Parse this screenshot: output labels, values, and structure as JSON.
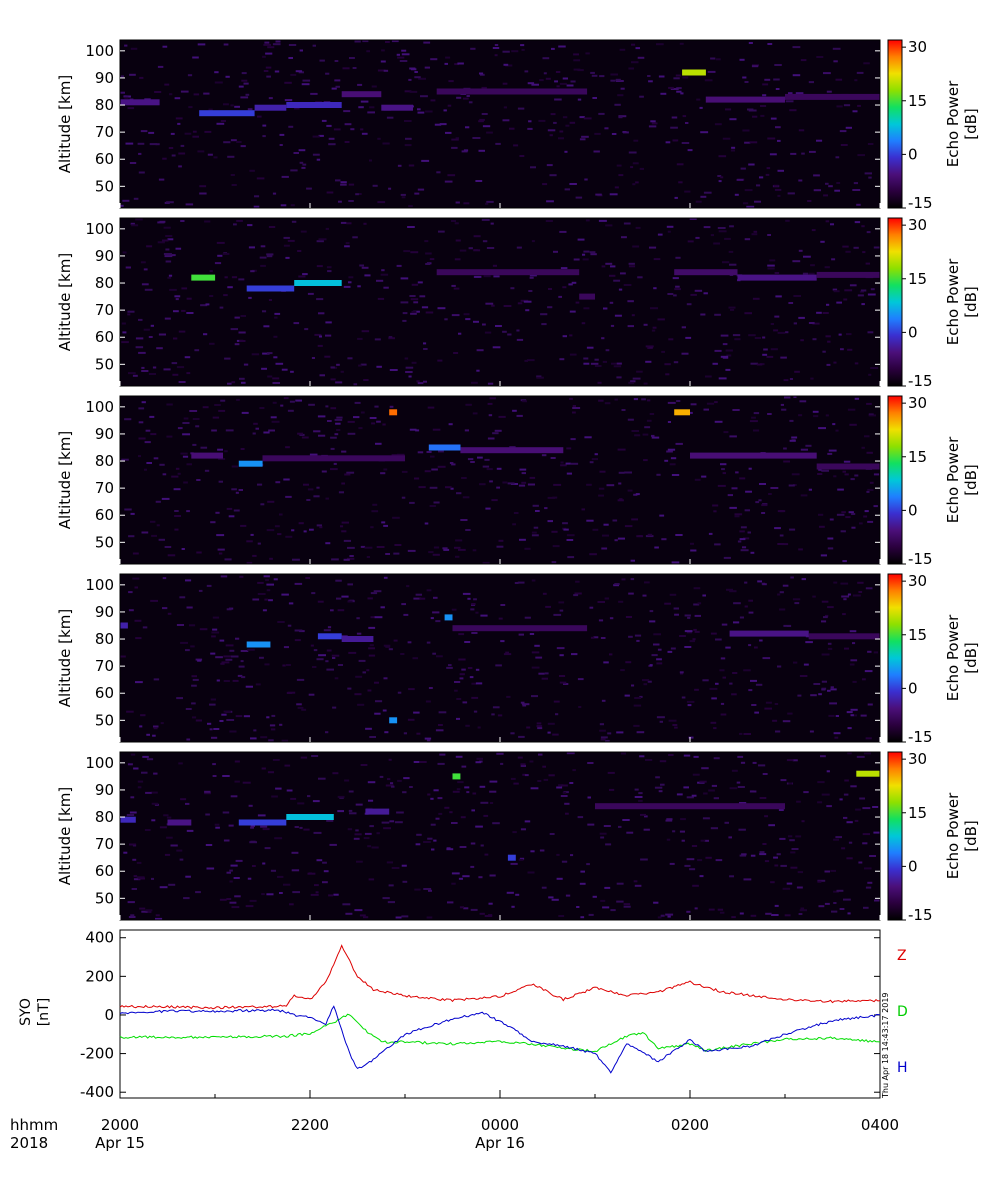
{
  "panels": [
    {
      "ylabel": "Altitude [km]",
      "yticks": [
        "100",
        "90",
        "80",
        "70",
        "60",
        "50"
      ],
      "cbar_label": "Echo Power [dB]",
      "cbar_ticks": [
        "30",
        "15",
        "0",
        "-15"
      ]
    },
    {
      "ylabel": "Altitude [km]",
      "yticks": [
        "100",
        "90",
        "80",
        "70",
        "60",
        "50"
      ],
      "cbar_label": "Echo Power [dB]",
      "cbar_ticks": [
        "30",
        "15",
        "0",
        "-15"
      ]
    },
    {
      "ylabel": "Altitude [km]",
      "yticks": [
        "100",
        "90",
        "80",
        "70",
        "60",
        "50"
      ],
      "cbar_label": "Echo Power [dB]",
      "cbar_ticks": [
        "30",
        "15",
        "0",
        "-15"
      ]
    },
    {
      "ylabel": "Altitude [km]",
      "yticks": [
        "100",
        "90",
        "80",
        "70",
        "60",
        "50"
      ],
      "cbar_label": "Echo Power [dB]",
      "cbar_ticks": [
        "30",
        "15",
        "0",
        "-15"
      ]
    },
    {
      "ylabel": "Altitude [km]",
      "yticks": [
        "100",
        "90",
        "80",
        "70",
        "60",
        "50"
      ],
      "cbar_label": "Echo Power [dB]",
      "cbar_ticks": [
        "30",
        "15",
        "0",
        "-15"
      ]
    }
  ],
  "mag": {
    "ylabel_line1": "SYO",
    "ylabel_line2": "[nT]",
    "yticks": [
      "400",
      "200",
      "0",
      "-200",
      "-400"
    ],
    "series_labels": [
      "Z",
      "D",
      "H"
    ],
    "timestamp": "Thu Apr 18 14:43:17 2019"
  },
  "xaxis": {
    "row_label_1": "hhmm",
    "row_label_2": "2018",
    "ticks": [
      "2000",
      "2200",
      "0000",
      "0200",
      "0400"
    ],
    "dates": [
      "Apr 15",
      "Apr 16"
    ]
  },
  "colors": {
    "Z": "#dd0000",
    "D": "#00dd00",
    "H": "#0000cc",
    "colormap": [
      "#000000",
      "#2a003d",
      "#4b0f7a",
      "#3a2fd0",
      "#1f7fff",
      "#00c8d8",
      "#12e060",
      "#8ee000",
      "#f0e000",
      "#ff8000",
      "#ff0000"
    ]
  },
  "chart_data": [
    {
      "type": "heatmap",
      "panel": 1,
      "x_range": [
        "2018-04-15 20:00",
        "2018-04-16 04:00"
      ],
      "ylabel": "Altitude [km]",
      "ylim": [
        42,
        104
      ],
      "colorbar": {
        "label": "Echo Power [dB]",
        "range": [
          -15,
          32
        ]
      },
      "echoes": [
        {
          "t": [
            "20:00",
            "20:25"
          ],
          "alt": 81,
          "db": -5
        },
        {
          "t": [
            "20:50",
            "21:25"
          ],
          "alt": 77,
          "db": 0
        },
        {
          "t": [
            "21:25",
            "21:45"
          ],
          "alt": 79,
          "db": -3
        },
        {
          "t": [
            "21:45",
            "22:20"
          ],
          "alt": 80,
          "db": -2
        },
        {
          "t": [
            "22:20",
            "22:45"
          ],
          "alt": 84,
          "db": -6
        },
        {
          "t": [
            "22:45",
            "23:05"
          ],
          "alt": 79,
          "db": -5
        },
        {
          "t": [
            "23:20",
            "00:55"
          ],
          "alt": 85,
          "db": -8
        },
        {
          "t": [
            "01:55",
            "02:10"
          ],
          "alt": 92,
          "db": 20
        },
        {
          "t": [
            "02:10",
            "03:00"
          ],
          "alt": 82,
          "db": -6
        },
        {
          "t": [
            "03:00",
            "04:00"
          ],
          "alt": 83,
          "db": -8
        }
      ]
    },
    {
      "type": "heatmap",
      "panel": 2,
      "x_range": [
        "2018-04-15 20:00",
        "2018-04-16 04:00"
      ],
      "ylabel": "Altitude [km]",
      "ylim": [
        42,
        104
      ],
      "colorbar": {
        "label": "Echo Power [dB]",
        "range": [
          -15,
          32
        ]
      },
      "echoes": [
        {
          "t": [
            "20:45",
            "21:00"
          ],
          "alt": 82,
          "db": 15
        },
        {
          "t": [
            "21:20",
            "21:50"
          ],
          "alt": 78,
          "db": 0
        },
        {
          "t": [
            "21:50",
            "22:20"
          ],
          "alt": 80,
          "db": 8
        },
        {
          "t": [
            "23:20",
            "00:50"
          ],
          "alt": 84,
          "db": -8
        },
        {
          "t": [
            "00:50",
            "01:00"
          ],
          "alt": 75,
          "db": -8
        },
        {
          "t": [
            "01:50",
            "02:30"
          ],
          "alt": 84,
          "db": -7
        },
        {
          "t": [
            "02:30",
            "03:20"
          ],
          "alt": 82,
          "db": -5
        },
        {
          "t": [
            "03:20",
            "04:00"
          ],
          "alt": 83,
          "db": -8
        }
      ]
    },
    {
      "type": "heatmap",
      "panel": 3,
      "x_range": [
        "2018-04-15 20:00",
        "2018-04-16 04:00"
      ],
      "ylabel": "Altitude [km]",
      "ylim": [
        42,
        104
      ],
      "colorbar": {
        "label": "Echo Power [dB]",
        "range": [
          -15,
          32
        ]
      },
      "echoes": [
        {
          "t": [
            "20:45",
            "21:05"
          ],
          "alt": 82,
          "db": -6
        },
        {
          "t": [
            "21:15",
            "21:30"
          ],
          "alt": 79,
          "db": 5
        },
        {
          "t": [
            "21:30",
            "23:00"
          ],
          "alt": 81,
          "db": -8
        },
        {
          "t": [
            "22:50",
            "22:55"
          ],
          "alt": 98,
          "db": 28
        },
        {
          "t": [
            "23:15",
            "23:35"
          ],
          "alt": 85,
          "db": 3
        },
        {
          "t": [
            "23:35",
            "00:40"
          ],
          "alt": 84,
          "db": -6
        },
        {
          "t": [
            "01:50",
            "02:00"
          ],
          "alt": 98,
          "db": 25
        },
        {
          "t": [
            "02:00",
            "03:20"
          ],
          "alt": 82,
          "db": -6
        },
        {
          "t": [
            "03:20",
            "04:00"
          ],
          "alt": 78,
          "db": -8
        }
      ]
    },
    {
      "type": "heatmap",
      "panel": 4,
      "x_range": [
        "2018-04-15 20:00",
        "2018-04-16 04:00"
      ],
      "ylabel": "Altitude [km]",
      "ylim": [
        42,
        104
      ],
      "colorbar": {
        "label": "Echo Power [dB]",
        "range": [
          -15,
          32
        ]
      },
      "echoes": [
        {
          "t": [
            "20:00",
            "20:05"
          ],
          "alt": 85,
          "db": -3
        },
        {
          "t": [
            "21:20",
            "21:35"
          ],
          "alt": 78,
          "db": 5
        },
        {
          "t": [
            "22:05",
            "22:20"
          ],
          "alt": 81,
          "db": 0
        },
        {
          "t": [
            "22:20",
            "22:40"
          ],
          "alt": 80,
          "db": -4
        },
        {
          "t": [
            "22:50",
            "22:55"
          ],
          "alt": 50,
          "db": 5
        },
        {
          "t": [
            "23:25",
            "23:30"
          ],
          "alt": 88,
          "db": 5
        },
        {
          "t": [
            "23:30",
            "00:55"
          ],
          "alt": 84,
          "db": -8
        },
        {
          "t": [
            "02:25",
            "03:15"
          ],
          "alt": 82,
          "db": -5
        },
        {
          "t": [
            "03:15",
            "04:00"
          ],
          "alt": 81,
          "db": -8
        }
      ]
    },
    {
      "type": "heatmap",
      "panel": 5,
      "x_range": [
        "2018-04-15 20:00",
        "2018-04-16 04:00"
      ],
      "ylabel": "Altitude [km]",
      "ylim": [
        42,
        104
      ],
      "colorbar": {
        "label": "Echo Power [dB]",
        "range": [
          -15,
          32
        ]
      },
      "echoes": [
        {
          "t": [
            "20:00",
            "20:10"
          ],
          "alt": 79,
          "db": -2
        },
        {
          "t": [
            "20:30",
            "20:45"
          ],
          "alt": 78,
          "db": -5
        },
        {
          "t": [
            "21:15",
            "21:45"
          ],
          "alt": 78,
          "db": 0
        },
        {
          "t": [
            "21:45",
            "22:15"
          ],
          "alt": 80,
          "db": 8
        },
        {
          "t": [
            "22:35",
            "22:50"
          ],
          "alt": 82,
          "db": -4
        },
        {
          "t": [
            "23:30",
            "23:35"
          ],
          "alt": 95,
          "db": 15
        },
        {
          "t": [
            "00:05",
            "00:10"
          ],
          "alt": 65,
          "db": 0
        },
        {
          "t": [
            "01:00",
            "03:00"
          ],
          "alt": 84,
          "db": -8
        },
        {
          "t": [
            "03:45",
            "04:00"
          ],
          "alt": 96,
          "db": 20
        }
      ]
    },
    {
      "type": "line",
      "panel": 6,
      "ylabel": "SYO [nT]",
      "ylim": [
        -430,
        440
      ],
      "x_range": [
        "2018-04-15 20:00",
        "2018-04-16 04:00"
      ],
      "series": [
        {
          "name": "Z",
          "points": [
            [
              "20:00",
              45
            ],
            [
              "21:00",
              38
            ],
            [
              "21:45",
              45
            ],
            [
              "21:50",
              100
            ],
            [
              "22:00",
              80
            ],
            [
              "22:10",
              170
            ],
            [
              "22:20",
              360
            ],
            [
              "22:30",
              200
            ],
            [
              "22:40",
              130
            ],
            [
              "23:00",
              100
            ],
            [
              "23:30",
              75
            ],
            [
              "00:00",
              95
            ],
            [
              "00:20",
              160
            ],
            [
              "00:40",
              80
            ],
            [
              "01:00",
              140
            ],
            [
              "01:20",
              100
            ],
            [
              "01:40",
              120
            ],
            [
              "02:00",
              170
            ],
            [
              "02:20",
              120
            ],
            [
              "02:40",
              100
            ],
            [
              "03:00",
              80
            ],
            [
              "03:30",
              70
            ],
            [
              "04:00",
              75
            ]
          ]
        },
        {
          "name": "D",
          "points": [
            [
              "20:00",
              -115
            ],
            [
              "21:00",
              -115
            ],
            [
              "21:45",
              -110
            ],
            [
              "22:00",
              -95
            ],
            [
              "22:15",
              -40
            ],
            [
              "22:25",
              5
            ],
            [
              "22:35",
              -80
            ],
            [
              "22:45",
              -140
            ],
            [
              "23:00",
              -140
            ],
            [
              "23:30",
              -150
            ],
            [
              "00:00",
              -135
            ],
            [
              "00:30",
              -160
            ],
            [
              "01:00",
              -190
            ],
            [
              "01:20",
              -110
            ],
            [
              "01:30",
              -90
            ],
            [
              "01:40",
              -175
            ],
            [
              "02:00",
              -150
            ],
            [
              "02:10",
              -185
            ],
            [
              "02:30",
              -160
            ],
            [
              "03:00",
              -125
            ],
            [
              "03:30",
              -120
            ],
            [
              "04:00",
              -140
            ]
          ]
        },
        {
          "name": "H",
          "points": [
            [
              "20:00",
              10
            ],
            [
              "20:30",
              20
            ],
            [
              "21:00",
              20
            ],
            [
              "21:40",
              25
            ],
            [
              "21:50",
              0
            ],
            [
              "22:00",
              -10
            ],
            [
              "22:10",
              -50
            ],
            [
              "22:15",
              50
            ],
            [
              "22:25",
              -200
            ],
            [
              "22:30",
              -280
            ],
            [
              "22:40",
              -230
            ],
            [
              "23:00",
              -100
            ],
            [
              "23:30",
              -20
            ],
            [
              "23:50",
              10
            ],
            [
              "00:10",
              -80
            ],
            [
              "00:20",
              -140
            ],
            [
              "00:40",
              -160
            ],
            [
              "01:00",
              -200
            ],
            [
              "01:10",
              -295
            ],
            [
              "01:20",
              -150
            ],
            [
              "01:40",
              -240
            ],
            [
              "02:00",
              -130
            ],
            [
              "02:10",
              -190
            ],
            [
              "02:40",
              -160
            ],
            [
              "03:00",
              -100
            ],
            [
              "03:30",
              -30
            ],
            [
              "04:00",
              0
            ]
          ]
        }
      ]
    }
  ]
}
